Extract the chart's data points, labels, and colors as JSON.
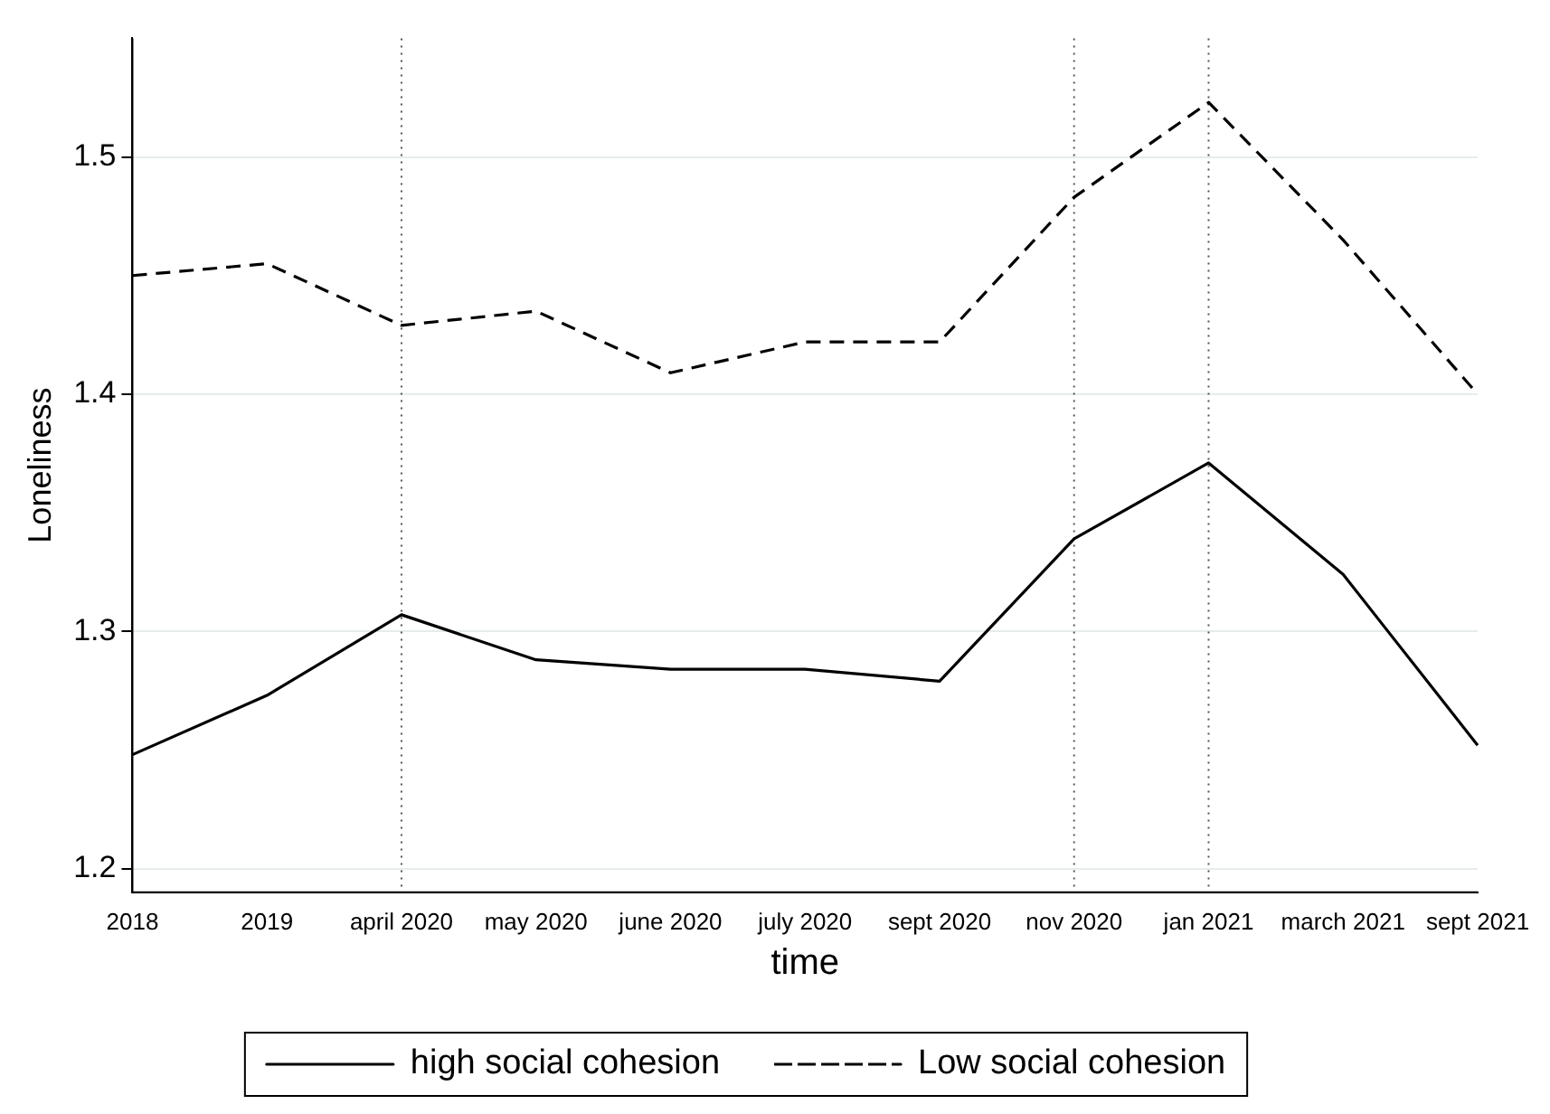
{
  "chart_data": {
    "type": "line",
    "xlabel": "time",
    "ylabel": "Loneliness",
    "categories": [
      "2018",
      "2019",
      "april 2020",
      "may 2020",
      "june 2020",
      "july 2020",
      "sept 2020",
      "nov 2020",
      "jan 2021",
      "march 2021",
      "sept 2021"
    ],
    "ylim": [
      1.19,
      1.55
    ],
    "yticks": [
      1.2,
      1.3,
      1.4,
      1.5
    ],
    "series": [
      {
        "name": "high social cohesion",
        "color": "#000000",
        "line_style": "solid",
        "values": [
          1.248,
          1.273,
          1.307,
          1.288,
          1.284,
          1.284,
          1.279,
          1.339,
          1.371,
          1.324,
          1.252
        ]
      },
      {
        "name": "Low social cohesion",
        "color": "#000000",
        "line_style": "dashed",
        "values": [
          1.45,
          1.455,
          1.429,
          1.435,
          1.409,
          1.422,
          1.422,
          1.483,
          1.523,
          1.465,
          1.4
        ]
      }
    ],
    "ref_lines": [
      {
        "axis": "x",
        "value": "april 2020",
        "color": "#555555",
        "line_style": "dotted"
      },
      {
        "axis": "x",
        "value": "nov 2020",
        "color": "#555555",
        "line_style": "dotted"
      },
      {
        "axis": "x",
        "value": "jan 2021",
        "color": "#555555",
        "line_style": "dotted"
      }
    ],
    "grid": "y",
    "legend": "bottom",
    "marker": "none"
  }
}
